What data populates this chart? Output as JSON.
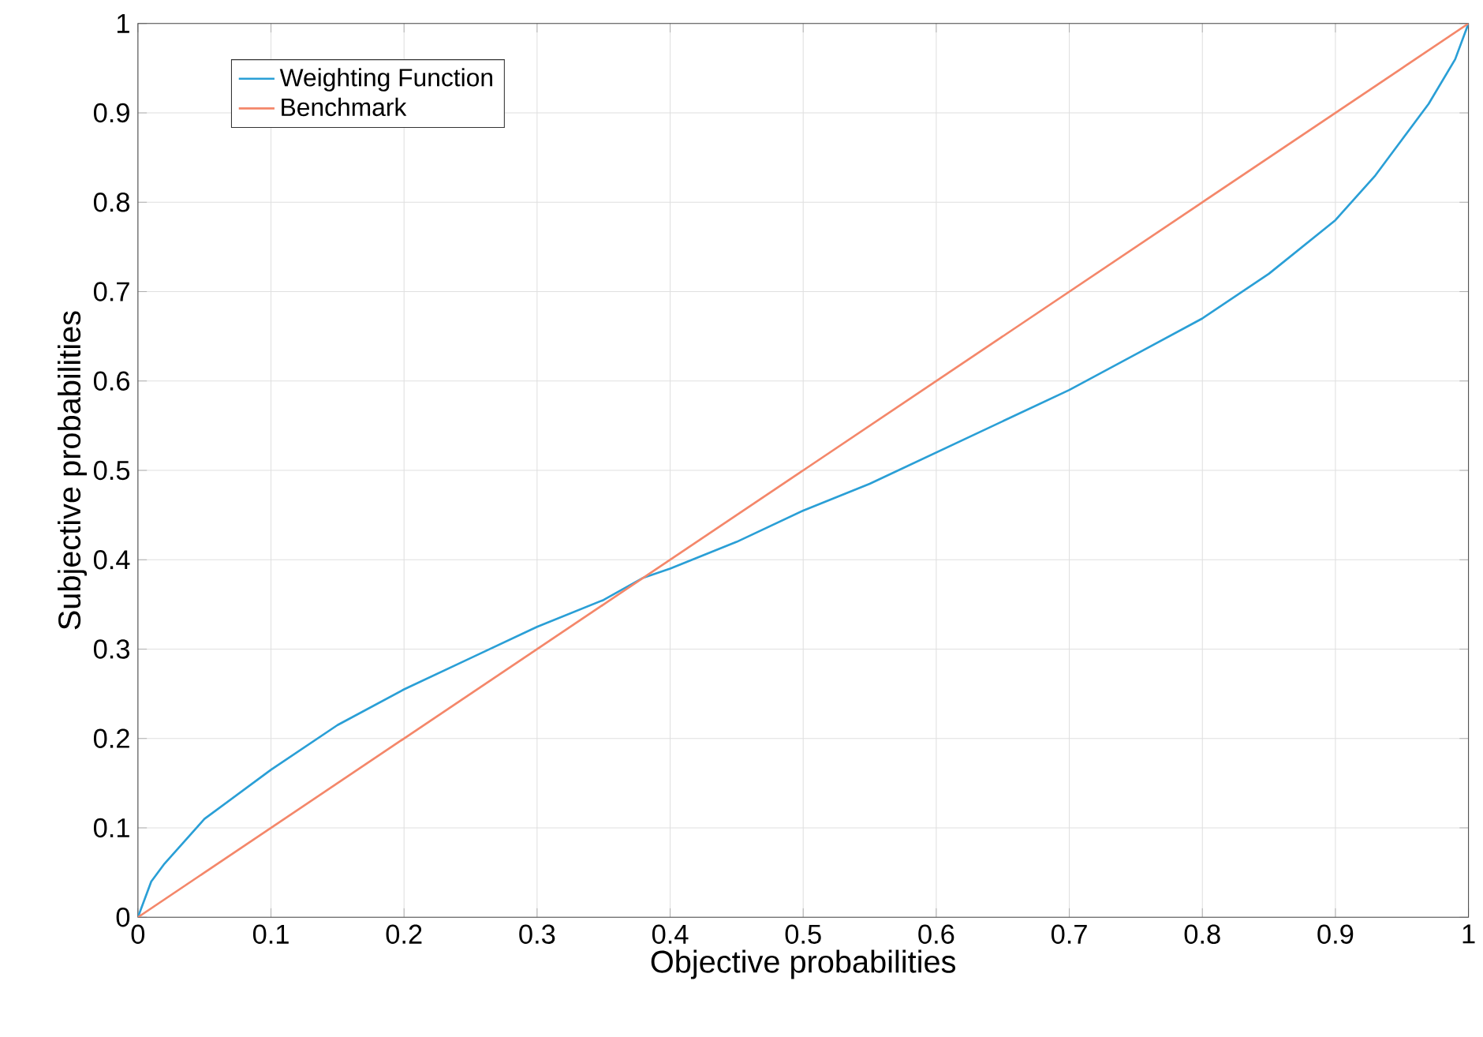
{
  "chart_data": {
    "type": "line",
    "xlabel": "Objective probabilities",
    "ylabel": "Subjective probabilities",
    "xlim": [
      0,
      1
    ],
    "ylim": [
      0,
      1
    ],
    "xticks": [
      0,
      0.1,
      0.2,
      0.3,
      0.4,
      0.5,
      0.6,
      0.7,
      0.8,
      0.9,
      1
    ],
    "yticks": [
      0,
      0.1,
      0.2,
      0.3,
      0.4,
      0.5,
      0.6,
      0.7,
      0.8,
      0.9,
      1
    ],
    "grid": true,
    "legend": "top left",
    "series": [
      {
        "name": "Weighting Function",
        "color": "#2a9fd6",
        "x": [
          0,
          0.01,
          0.02,
          0.05,
          0.1,
          0.15,
          0.2,
          0.25,
          0.3,
          0.35,
          0.38,
          0.4,
          0.45,
          0.5,
          0.55,
          0.6,
          0.65,
          0.7,
          0.75,
          0.8,
          0.85,
          0.9,
          0.93,
          0.95,
          0.97,
          0.99,
          1
        ],
        "values": [
          0,
          0.04,
          0.06,
          0.11,
          0.165,
          0.215,
          0.255,
          0.29,
          0.325,
          0.355,
          0.38,
          0.39,
          0.42,
          0.455,
          0.485,
          0.52,
          0.555,
          0.59,
          0.63,
          0.67,
          0.72,
          0.78,
          0.83,
          0.87,
          0.91,
          0.96,
          1
        ]
      },
      {
        "name": "Benchmark",
        "color": "#f4876a",
        "x": [
          0,
          1
        ],
        "values": [
          0,
          1
        ]
      }
    ]
  }
}
